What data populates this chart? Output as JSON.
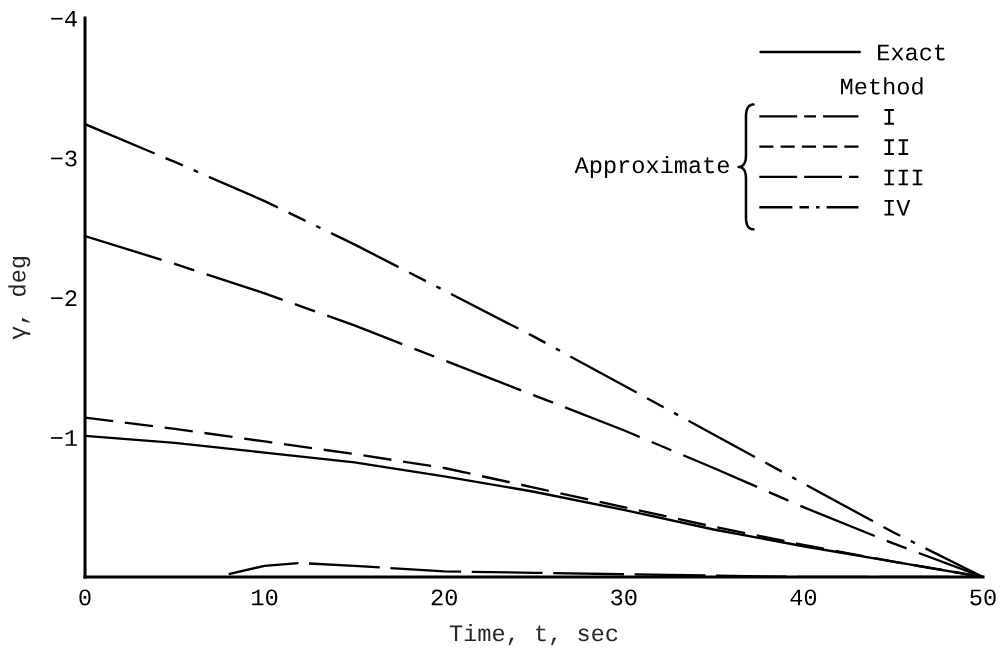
{
  "chart_data": {
    "type": "line",
    "xlabel": "Time, t, sec",
    "ylabel": "γ, deg",
    "legend_title": "Method",
    "annotations": [
      "Approximate"
    ],
    "legend": "top right",
    "x": [
      0,
      5,
      10,
      15,
      20,
      25,
      30,
      35,
      40,
      45,
      50
    ],
    "series": [
      {
        "name": "Exact",
        "color": "#000000",
        "line_style": "solid",
        "values": [
          -1.01,
          -0.96,
          -0.89,
          -0.82,
          -0.72,
          -0.61,
          -0.48,
          -0.34,
          -0.22,
          -0.11,
          0
        ]
      },
      {
        "name": "I",
        "color": "#000000",
        "line_style": "longshortdashed",
        "values": [
          -2.44,
          -2.24,
          -2.03,
          -1.8,
          -1.55,
          -1.3,
          -1.05,
          -0.78,
          -0.5,
          -0.24,
          0
        ]
      },
      {
        "name": "II",
        "color": "#000000",
        "line_style": "dashed",
        "values": [
          -1.14,
          -1.06,
          -0.97,
          -0.88,
          -0.78,
          -0.64,
          -0.5,
          -0.36,
          -0.23,
          -0.11,
          0
        ]
      },
      {
        "name": "III",
        "color": "#000000",
        "line_style": "longdashed",
        "x": [
          8,
          10,
          12,
          15,
          20,
          25,
          30,
          35,
          40,
          45,
          50
        ],
        "values": [
          -0.02,
          -0.08,
          -0.1,
          -0.08,
          -0.04,
          -0.03,
          -0.02,
          -0.01,
          0,
          0,
          0
        ]
      },
      {
        "name": "IV",
        "color": "#000000",
        "line_style": "dashdot",
        "values": [
          -3.24,
          -2.97,
          -2.69,
          -2.38,
          -2.05,
          -1.72,
          -1.37,
          -1.02,
          -0.67,
          -0.32,
          0
        ]
      }
    ],
    "xlim": [
      0,
      50
    ],
    "ylim": [
      0,
      -4
    ],
    "xticks": [
      0,
      10,
      20,
      30,
      40,
      50
    ],
    "yticks": [
      {
        "value": -1,
        "label": "−1"
      },
      {
        "value": -2,
        "label": "−2"
      },
      {
        "value": -3,
        "label": "−3"
      },
      {
        "value": -4,
        "label": "−4"
      }
    ]
  }
}
